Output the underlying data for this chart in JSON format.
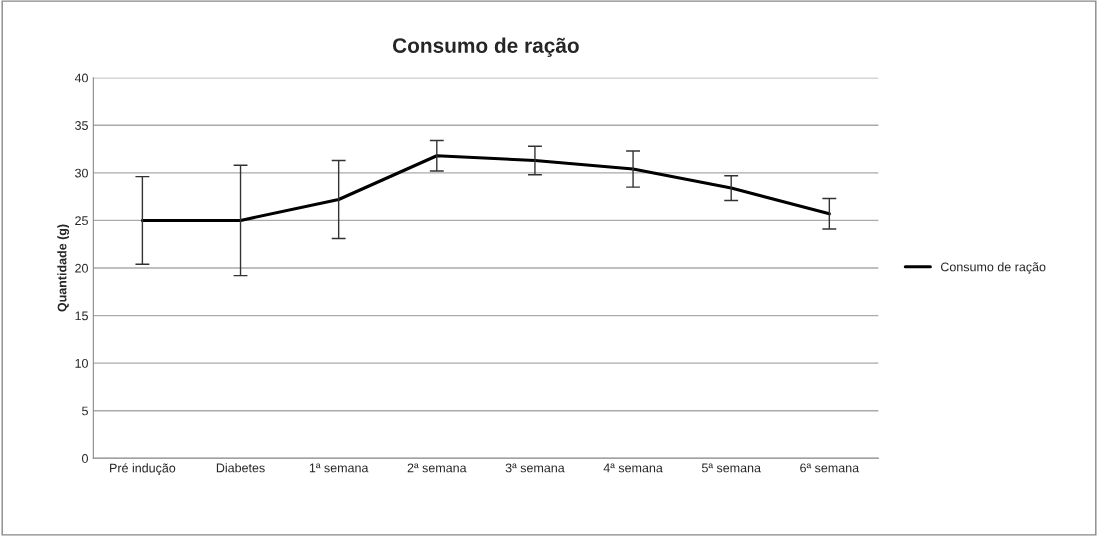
{
  "chart_data": {
    "type": "line",
    "title": "Consumo de ração",
    "ylabel": "Quantidade (g)",
    "categories": [
      "Pré indução",
      "Diabetes",
      "1ª semana",
      "2ª semana",
      "3ª semana",
      "4ª semana",
      "5ª semana",
      "6ª semana"
    ],
    "series": [
      {
        "name": "Consumo de ração",
        "color": "#000000",
        "values": [
          25,
          25,
          27.2,
          31.8,
          31.3,
          30.4,
          28.4,
          25.7
        ],
        "errors": [
          4.6,
          5.8,
          4.1,
          1.6,
          1.5,
          1.9,
          1.3,
          1.6
        ]
      }
    ],
    "ylim": [
      0,
      40
    ],
    "yticks": [
      0,
      5,
      10,
      15,
      20,
      25,
      30,
      35,
      40
    ],
    "grid": "y",
    "legend": "right",
    "marker": "none",
    "line_style": "solid"
  }
}
